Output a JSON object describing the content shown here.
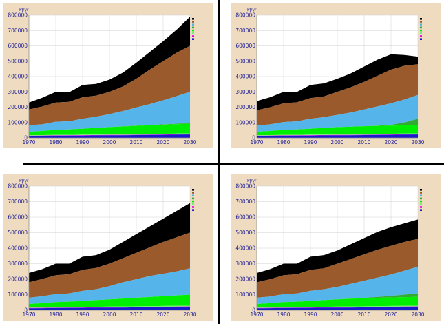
{
  "chart_data": [
    {
      "type": "area",
      "ylabel": "PJ/yr",
      "x": [
        1970,
        1975,
        1980,
        1985,
        1990,
        1995,
        2000,
        2005,
        2010,
        2015,
        2020,
        2025,
        2030
      ],
      "xticks": [
        1970,
        1980,
        1990,
        2000,
        2010,
        2020,
        2030
      ],
      "yticks": [
        0,
        100000,
        200000,
        300000,
        400000,
        500000,
        600000,
        700000,
        800000
      ],
      "xlim": [
        1970,
        2030
      ],
      "ylim": [
        0,
        800000
      ],
      "grid": true,
      "legend": "top-right",
      "series_colors": [
        "#1a1acc",
        "#e600e6",
        "#77ee77",
        "#00ee00",
        "#33aa33",
        "#55b5ea",
        "#9a5a2c",
        "#000000"
      ],
      "layers": [
        [
          12000,
          13000,
          14000,
          15000,
          15000,
          16000,
          16000,
          17000,
          18000,
          19000,
          20000,
          21000,
          22000
        ],
        [
          14000,
          15000,
          16000,
          17000,
          17500,
          18000,
          19000,
          19500,
          20000,
          21000,
          22000,
          23000,
          24000
        ],
        [
          17000,
          18000,
          19000,
          20000,
          21000,
          22000,
          23000,
          24000,
          25000,
          26000,
          27000,
          28000,
          29000
        ],
        [
          40000,
          45000,
          52000,
          55000,
          60000,
          65000,
          70000,
          74000,
          78000,
          82000,
          86000,
          89000,
          92000
        ],
        [
          40000,
          45000,
          52000,
          55000,
          60000,
          65000,
          70000,
          75000,
          80000,
          84000,
          88000,
          92000,
          96000
        ],
        [
          82000,
          88000,
          105000,
          108000,
          125000,
          138000,
          155000,
          175000,
          198000,
          220000,
          245000,
          272000,
          300000
        ],
        [
          185000,
          205000,
          230000,
          235000,
          265000,
          275000,
          300000,
          335000,
          385000,
          445000,
          500000,
          555000,
          600000
        ],
        [
          230000,
          262000,
          300000,
          298000,
          345000,
          352000,
          380000,
          425000,
          490000,
          560000,
          630000,
          705000,
          790000
        ]
      ]
    },
    {
      "type": "area",
      "ylabel": "PJ/yr",
      "x": [
        1970,
        1975,
        1980,
        1985,
        1990,
        1995,
        2000,
        2005,
        2010,
        2015,
        2020,
        2025,
        2030
      ],
      "xticks": [
        1970,
        1980,
        1990,
        2000,
        2010,
        2020,
        2030
      ],
      "yticks": [
        0,
        100000,
        200000,
        300000,
        400000,
        500000,
        600000,
        700000,
        800000
      ],
      "xlim": [
        1970,
        2030
      ],
      "ylim": [
        0,
        800000
      ],
      "grid": true,
      "legend": "top-right",
      "series_colors": [
        "#1a1acc",
        "#e600e6",
        "#77ee77",
        "#00ee00",
        "#33aa33",
        "#55b5ea",
        "#9a5a2c",
        "#000000"
      ],
      "layers": [
        [
          12000,
          13000,
          14000,
          15000,
          15000,
          16000,
          16000,
          17000,
          18000,
          19000,
          20000,
          21000,
          22000
        ],
        [
          14000,
          15000,
          16000,
          17000,
          17500,
          18000,
          19000,
          19500,
          20000,
          21000,
          22000,
          23000,
          24000
        ],
        [
          17000,
          18000,
          19000,
          20000,
          21000,
          22000,
          23000,
          24000,
          25000,
          26000,
          27000,
          28000,
          29000
        ],
        [
          40000,
          45000,
          52000,
          55000,
          60000,
          65000,
          70000,
          73000,
          76000,
          78000,
          80000,
          82000,
          84000
        ],
        [
          40000,
          45000,
          52000,
          55000,
          60000,
          65000,
          70000,
          73000,
          76000,
          80000,
          85000,
          100000,
          125000
        ],
        [
          80000,
          88000,
          103000,
          108000,
          125000,
          135000,
          150000,
          165000,
          185000,
          205000,
          225000,
          250000,
          280000
        ],
        [
          180000,
          200000,
          225000,
          232000,
          260000,
          270000,
          300000,
          330000,
          365000,
          405000,
          445000,
          470000,
          480000
        ],
        [
          240000,
          265000,
          300000,
          300000,
          345000,
          355000,
          385000,
          420000,
          465000,
          510000,
          545000,
          540000,
          530000
        ]
      ]
    },
    {
      "type": "area",
      "ylabel": "PJ/yr",
      "x": [
        1970,
        1975,
        1980,
        1985,
        1990,
        1995,
        2000,
        2005,
        2010,
        2015,
        2020,
        2025,
        2030
      ],
      "xticks": [
        1970,
        1980,
        1990,
        2000,
        2010,
        2020,
        2030
      ],
      "yticks": [
        0,
        100000,
        200000,
        300000,
        400000,
        500000,
        600000,
        700000,
        800000
      ],
      "xlim": [
        1970,
        2030
      ],
      "ylim": [
        0,
        800000
      ],
      "grid": true,
      "legend": "top-right",
      "series_colors": [
        "#1a1acc",
        "#e600e6",
        "#77ee77",
        "#00ee00",
        "#33aa33",
        "#55b5ea",
        "#9a5a2c",
        "#000000"
      ],
      "layers": [
        [
          12000,
          13000,
          14000,
          15000,
          15000,
          16000,
          16000,
          17000,
          18000,
          19000,
          20000,
          21000,
          22000
        ],
        [
          14000,
          15000,
          16000,
          17000,
          17500,
          18000,
          19000,
          19500,
          20000,
          21000,
          22000,
          23000,
          24000
        ],
        [
          17000,
          18000,
          19000,
          20000,
          21000,
          22000,
          23000,
          24000,
          25000,
          26000,
          27000,
          28000,
          29000
        ],
        [
          40000,
          45000,
          52000,
          55000,
          60000,
          65000,
          70000,
          75000,
          80000,
          85000,
          90000,
          95000,
          100000
        ],
        [
          40000,
          45000,
          52000,
          55000,
          60000,
          65000,
          70000,
          75000,
          80000,
          85000,
          90000,
          95000,
          100000
        ],
        [
          80000,
          90000,
          103000,
          108000,
          125000,
          135000,
          155000,
          180000,
          200000,
          220000,
          235000,
          250000,
          270000
        ],
        [
          180000,
          202000,
          225000,
          232000,
          260000,
          272000,
          300000,
          335000,
          370000,
          405000,
          440000,
          470000,
          500000
        ],
        [
          240000,
          265000,
          300000,
          300000,
          345000,
          355000,
          390000,
          440000,
          490000,
          540000,
          590000,
          640000,
          690000
        ]
      ]
    },
    {
      "type": "area",
      "ylabel": "PJ/yr",
      "x": [
        1970,
        1975,
        1980,
        1985,
        1990,
        1995,
        2000,
        2005,
        2010,
        2015,
        2020,
        2025,
        2030
      ],
      "xticks": [
        1970,
        1980,
        1990,
        2000,
        2010,
        2020,
        2030
      ],
      "yticks": [
        0,
        100000,
        200000,
        300000,
        400000,
        500000,
        600000,
        700000,
        800000
      ],
      "xlim": [
        1970,
        2030
      ],
      "ylim": [
        0,
        800000
      ],
      "grid": true,
      "legend": "top-right",
      "series_colors": [
        "#1a1acc",
        "#e600e6",
        "#77ee77",
        "#00ee00",
        "#33aa33",
        "#55b5ea",
        "#9a5a2c",
        "#000000"
      ],
      "layers": [
        [
          12000,
          13000,
          14000,
          15000,
          15000,
          16000,
          16000,
          17000,
          18000,
          19000,
          20000,
          21000,
          22000
        ],
        [
          14000,
          15000,
          16000,
          17000,
          17500,
          18000,
          19000,
          19500,
          20000,
          21000,
          22000,
          23000,
          24000
        ],
        [
          17000,
          18000,
          19000,
          20000,
          21000,
          22000,
          23000,
          24000,
          25000,
          26000,
          27000,
          28000,
          29000
        ],
        [
          40000,
          45000,
          52000,
          55000,
          60000,
          65000,
          70000,
          74000,
          77000,
          80000,
          82000,
          84000,
          86000
        ],
        [
          40000,
          45000,
          52000,
          55000,
          60000,
          65000,
          70000,
          75000,
          80000,
          85000,
          92000,
          100000,
          108000
        ],
        [
          80000,
          88000,
          103000,
          108000,
          125000,
          135000,
          150000,
          170000,
          190000,
          210000,
          230000,
          255000,
          280000
        ],
        [
          180000,
          200000,
          225000,
          232000,
          260000,
          270000,
          300000,
          330000,
          360000,
          390000,
          415000,
          440000,
          460000
        ],
        [
          240000,
          265000,
          300000,
          300000,
          345000,
          355000,
          385000,
          425000,
          465000,
          505000,
          535000,
          560000,
          585000
        ]
      ]
    }
  ]
}
